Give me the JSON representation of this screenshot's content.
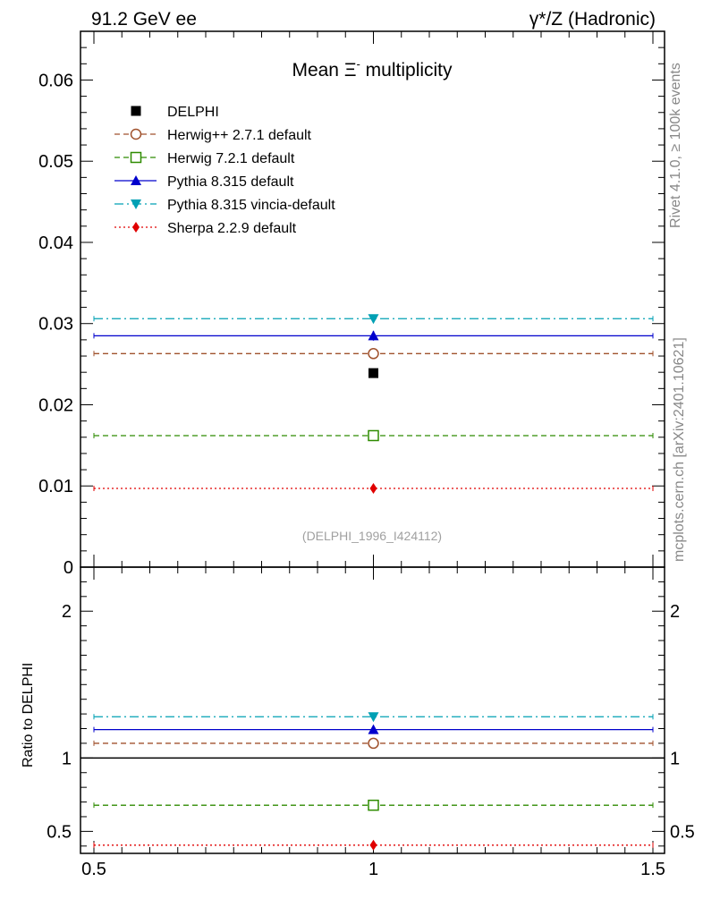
{
  "header": {
    "left": "91.2 GeV ee",
    "right": "γ*/Z (Hadronic)"
  },
  "side_labels": {
    "rivet": "Rivet 4.1.0, ≥ 100k events",
    "mcplots": "mcplots.cern.ch [arXiv:2401.10621]"
  },
  "watermark": "(DELPHI_1996_I424112)",
  "chart_data": [
    {
      "panel": "main",
      "type": "scatter",
      "title_prefix": "Mean",
      "title_particle": "Ξ",
      "title_superscript": "-",
      "title_suffix": "multiplicity",
      "xlabel": "",
      "ylabel": "",
      "xlim": [
        0.5,
        1.5
      ],
      "ylim": [
        0,
        0.066
      ],
      "yticks": [
        0,
        0.01,
        0.02,
        0.03,
        0.04,
        0.05,
        0.06
      ],
      "ytick_labels": [
        "0",
        "0.01",
        "0.02",
        "0.03",
        "0.04",
        "0.05",
        "0.06"
      ],
      "grid": false,
      "legend_position": "top-left",
      "series": [
        {
          "name": "DELPHI",
          "style": "data",
          "marker": "square-filled",
          "color": "#000000",
          "x": 1,
          "value": 0.0239
        },
        {
          "name": "Herwig++ 2.7.1 default",
          "style": "dashed",
          "marker": "circle-open",
          "color": "#a0522d",
          "x": 1,
          "value": 0.0263
        },
        {
          "name": "Herwig 7.2.1 default",
          "style": "dashed",
          "marker": "square-open",
          "color": "#2e8b00",
          "x": 1,
          "value": 0.0162
        },
        {
          "name": "Pythia 8.315 default",
          "style": "solid",
          "marker": "triangle-up",
          "color": "#0000cc",
          "x": 1,
          "value": 0.0285,
          "err": 0.0006
        },
        {
          "name": "Pythia 8.315 vincia-default",
          "style": "dashdot",
          "marker": "triangle-down",
          "color": "#00a0b4",
          "x": 1,
          "value": 0.0306
        },
        {
          "name": "Sherpa 2.2.9 default",
          "style": "dotted",
          "marker": "diamond",
          "color": "#e00000",
          "x": 1,
          "value": 0.0097
        }
      ]
    },
    {
      "panel": "ratio",
      "type": "scatter",
      "ylabel": "Ratio to DELPHI",
      "xlim": [
        0.5,
        1.5
      ],
      "ylim": [
        0.35,
        2.3
      ],
      "xticks": [
        0.5,
        1,
        1.5
      ],
      "xtick_labels": [
        "0.5",
        "1",
        "1.5"
      ],
      "yticks": [
        0.5,
        1,
        2
      ],
      "ytick_labels": [
        "0.5",
        "1",
        "2"
      ],
      "reference": 1,
      "series": [
        {
          "name": "Herwig++ 2.7.1 default",
          "value": 1.1
        },
        {
          "name": "Herwig 7.2.1 default",
          "value": 0.678
        },
        {
          "name": "Pythia 8.315 default",
          "value": 1.193
        },
        {
          "name": "Pythia 8.315 vincia-default",
          "value": 1.281
        },
        {
          "name": "Sherpa 2.2.9 default",
          "value": 0.406
        }
      ]
    }
  ]
}
